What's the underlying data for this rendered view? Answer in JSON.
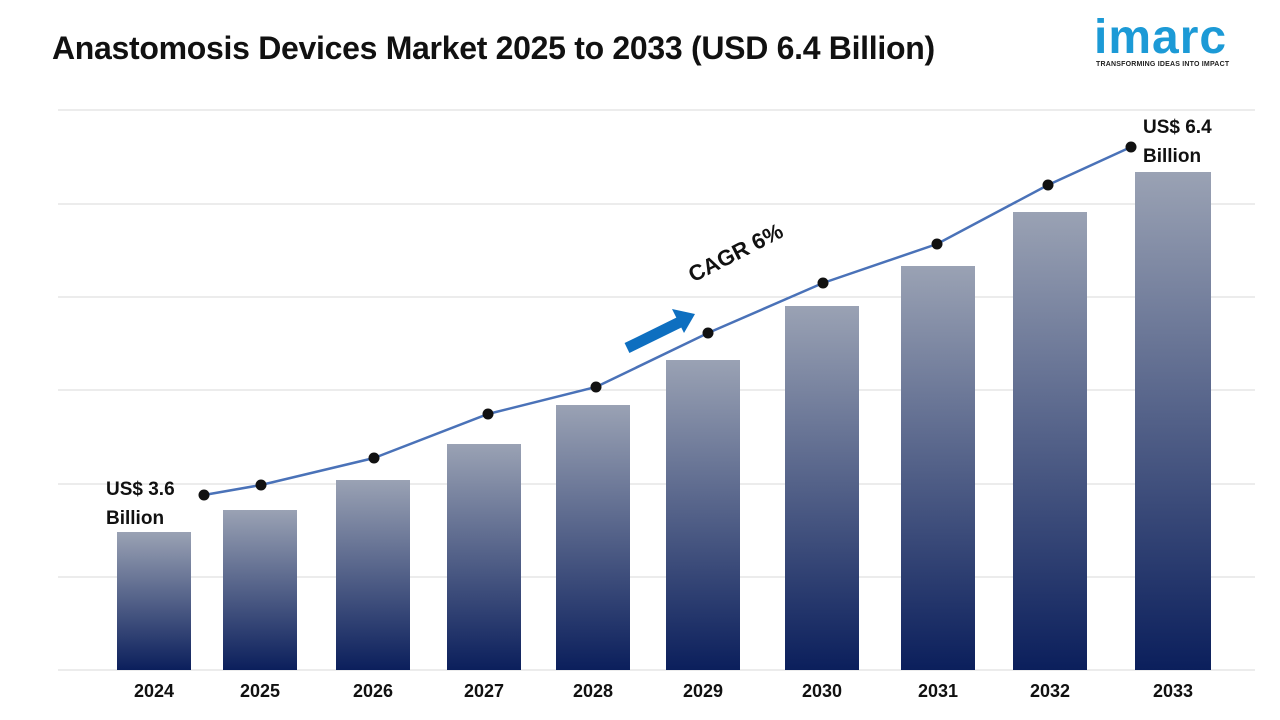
{
  "title": "Anastomosis Devices Market 2025 to 2033 (USD 6.4 Billion)",
  "logo": {
    "word": "imarc",
    "tagline": "TRANSFORMING IDEAS INTO IMPACT"
  },
  "colors": {
    "bar_top": "#9aa2b4",
    "bar_bottom": "#0b1f5c",
    "line": "#4a72b8",
    "marker": "#111111",
    "arrow": "#0e6fc0",
    "grid": "#d9d9d9",
    "logo": "#1c9ad6"
  },
  "annotations": {
    "start_line1": "US$ 3.6",
    "start_line2": "Billion",
    "end_line1": "US$ 6.4",
    "end_line2": "Billion",
    "cagr": "CAGR 6%"
  },
  "chart_data": {
    "type": "bar",
    "title": "Anastomosis Devices Market 2025 to 2033 (USD 6.4 Billion)",
    "xlabel": "",
    "ylabel": "",
    "categories": [
      "2024",
      "2025",
      "2026",
      "2027",
      "2028",
      "2029",
      "2030",
      "2031",
      "2032",
      "2033"
    ],
    "values": [
      3.6,
      3.8,
      4.05,
      4.4,
      4.75,
      5.05,
      5.55,
      5.95,
      6.05,
      6.4
    ],
    "trend_line": [
      3.6,
      3.8,
      4.05,
      4.4,
      4.75,
      5.05,
      5.55,
      5.95,
      6.05,
      6.4
    ],
    "ylim": [
      0,
      6.7
    ],
    "grid": true,
    "legend": "none"
  }
}
